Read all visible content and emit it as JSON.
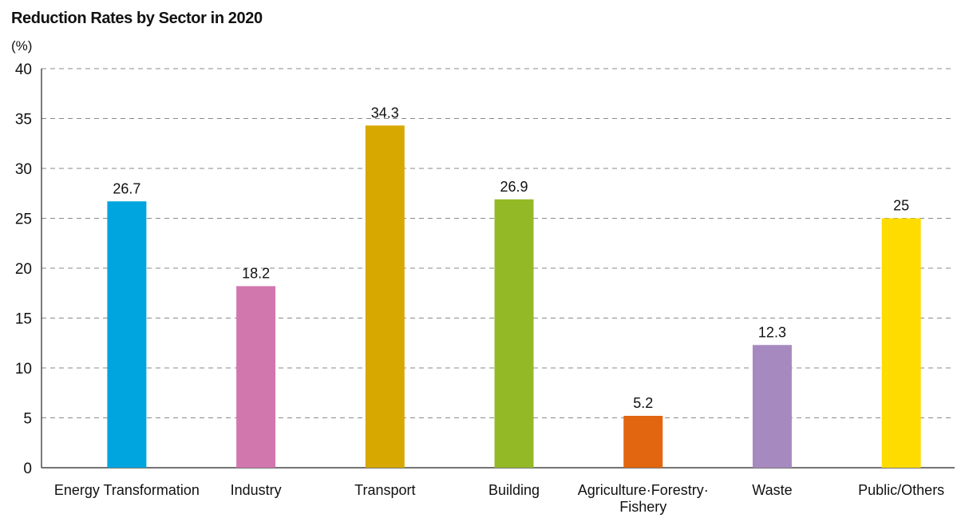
{
  "chart_data": {
    "type": "bar",
    "title": "Reduction Rates by Sector in 2020",
    "ylabel": "(%)",
    "xlabel": "",
    "ylim": [
      0,
      40
    ],
    "yticks": [
      0,
      5,
      10,
      15,
      20,
      25,
      30,
      35,
      40
    ],
    "grid": true,
    "categories": [
      "Energy Transformation",
      "Industry",
      "Transport",
      "Building",
      "Agriculture·Forestry·Fishery",
      "Waste",
      "Public/Others"
    ],
    "category_lines": [
      [
        "Energy Transformation"
      ],
      [
        "Industry"
      ],
      [
        "Transport"
      ],
      [
        "Building"
      ],
      [
        "Agriculture·Forestry·",
        "Fishery"
      ],
      [
        "Waste"
      ],
      [
        "Public/Others"
      ]
    ],
    "values": [
      26.7,
      18.2,
      34.3,
      26.9,
      5.2,
      12.3,
      25
    ],
    "value_labels": [
      "26.7",
      "18.2",
      "34.3",
      "26.9",
      "5.2",
      "12.3",
      "25"
    ],
    "colors": [
      "#00a5df",
      "#d177ae",
      "#d7a800",
      "#94b926",
      "#e2650f",
      "#a68abf",
      "#ffdc00"
    ]
  }
}
